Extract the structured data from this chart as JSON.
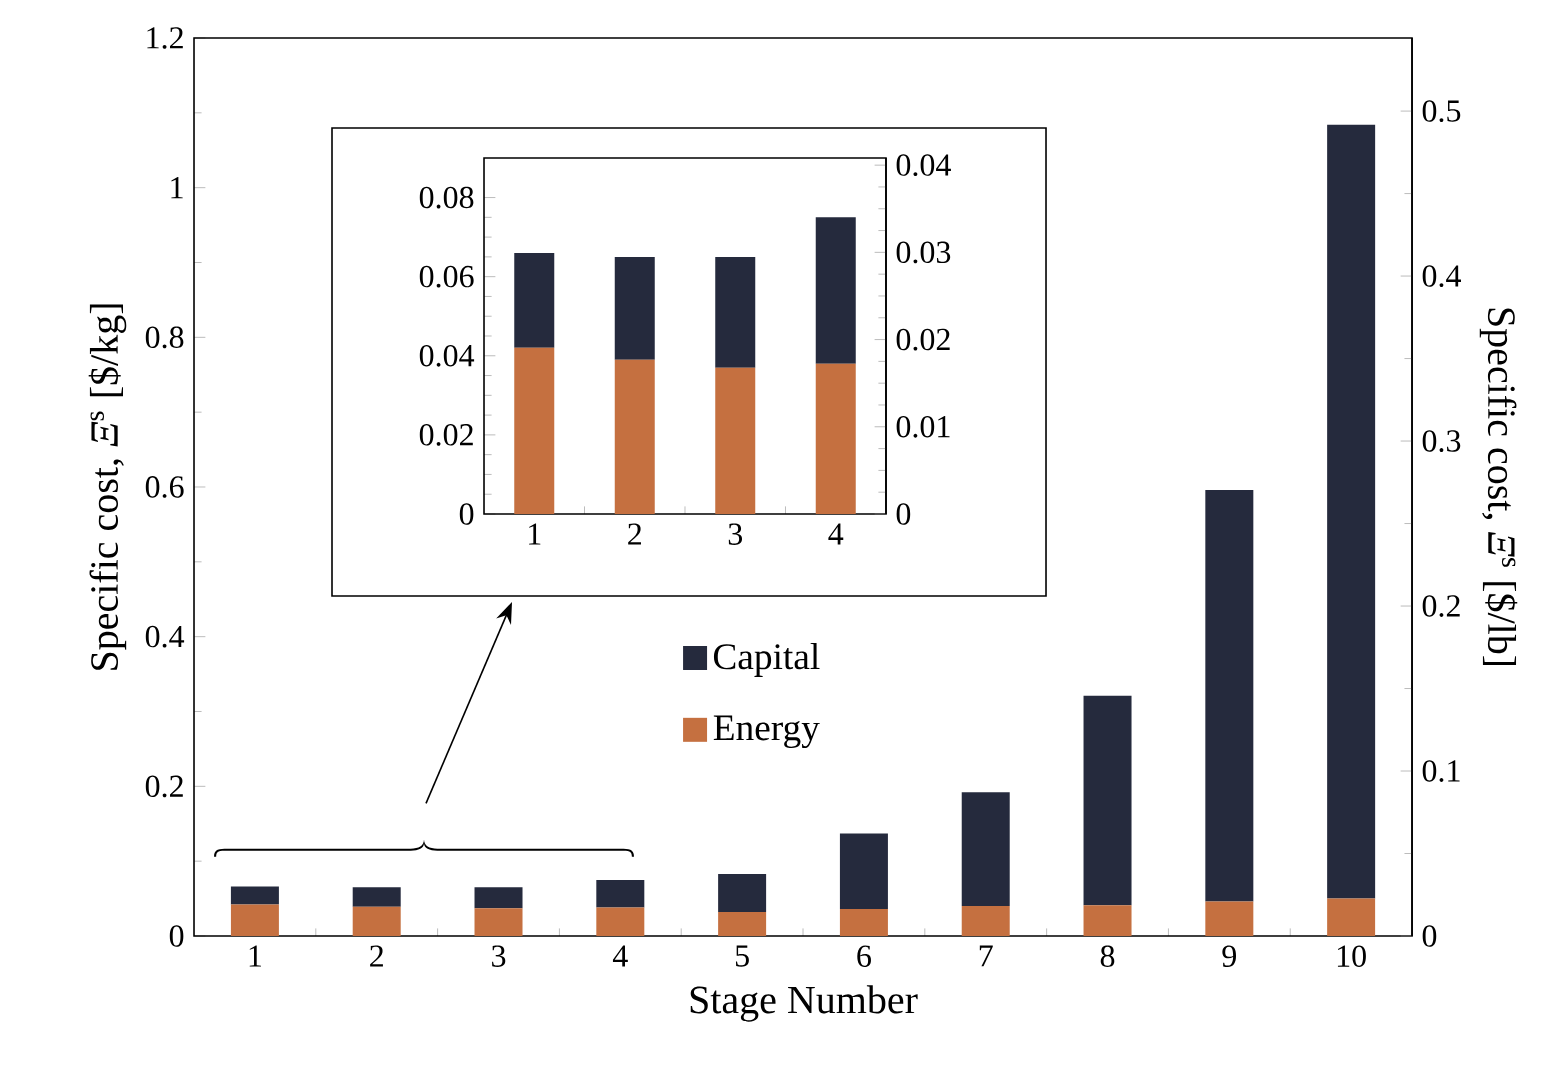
{
  "chart_data": [
    {
      "type": "bar",
      "stacked": true,
      "xlabel": "Stage Number",
      "ylabel": "Specific cost, *Ξ*$^{s}$ [$/kg]",
      "y2label": "Specific cost, *Ξ*$^{s}$ [$/lb]",
      "categories": [
        "1",
        "2",
        "3",
        "4",
        "5",
        "6",
        "7",
        "8",
        "9",
        "10"
      ],
      "series": [
        {
          "name": "Energy",
          "color": "#c57040",
          "values": [
            0.042,
            0.039,
            0.037,
            0.038,
            0.032,
            0.036,
            0.04,
            0.041,
            0.046,
            0.05
          ]
        },
        {
          "name": "Capital",
          "color": "#252a3d",
          "values": [
            0.024,
            0.026,
            0.028,
            0.037,
            0.051,
            0.101,
            0.152,
            0.28,
            0.55,
            1.034
          ]
        }
      ],
      "ylim": [
        0,
        1.2
      ],
      "yticks": [
        0,
        0.2,
        0.4,
        0.6,
        0.8,
        1,
        1.2
      ],
      "y2lim": [
        0,
        0.5443
      ],
      "y2ticks": [
        0,
        0.1,
        0.2,
        0.3,
        0.4,
        0.5
      ],
      "legend": "center"
    },
    {
      "type": "bar",
      "stacked": true,
      "categories": [
        "1",
        "2",
        "3",
        "4"
      ],
      "series": [
        {
          "color": "#c57040",
          "values": [
            0.042,
            0.039,
            0.037,
            0.038
          ]
        },
        {
          "color": "#252a3d",
          "values": [
            0.024,
            0.026,
            0.028,
            0.037
          ]
        }
      ],
      "ylim": [
        0,
        0.09
      ],
      "yticks": [
        0,
        0.02,
        0.04,
        0.06,
        0.08
      ],
      "y2lim": [
        0,
        0.04082
      ],
      "y2ticks": [
        0,
        0.01,
        0.02,
        0.03,
        0.04
      ]
    }
  ]
}
